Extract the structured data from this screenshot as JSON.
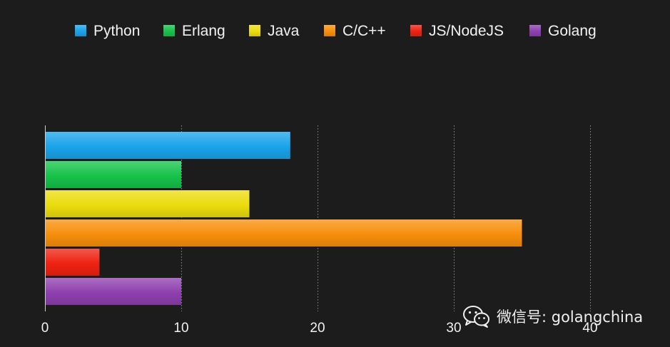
{
  "chart_data": {
    "type": "bar",
    "orientation": "horizontal",
    "title": "",
    "xlabel": "",
    "ylabel": "",
    "xlim": [
      0,
      40
    ],
    "xticks": [
      0,
      10,
      20,
      30,
      40
    ],
    "xtick_labels": [
      "0",
      "10",
      "20",
      "30",
      "40"
    ],
    "grid": true,
    "legend_position": "top-center",
    "series": [
      {
        "name": "Python",
        "value": 18,
        "color": "#1aa3ea"
      },
      {
        "name": "Erlang",
        "value": 10,
        "color": "#16c24a"
      },
      {
        "name": "Java",
        "value": 15,
        "color": "#ebdc0c"
      },
      {
        "name": "C/C++",
        "value": 35,
        "color": "#f78f0c"
      },
      {
        "name": "JS/NodeJS",
        "value": 4,
        "color": "#ee2212"
      },
      {
        "name": "Golang",
        "value": 10,
        "color": "#8e3fae"
      }
    ]
  },
  "watermark": {
    "icon": "wechat-icon",
    "text": "微信号: golangchina"
  }
}
